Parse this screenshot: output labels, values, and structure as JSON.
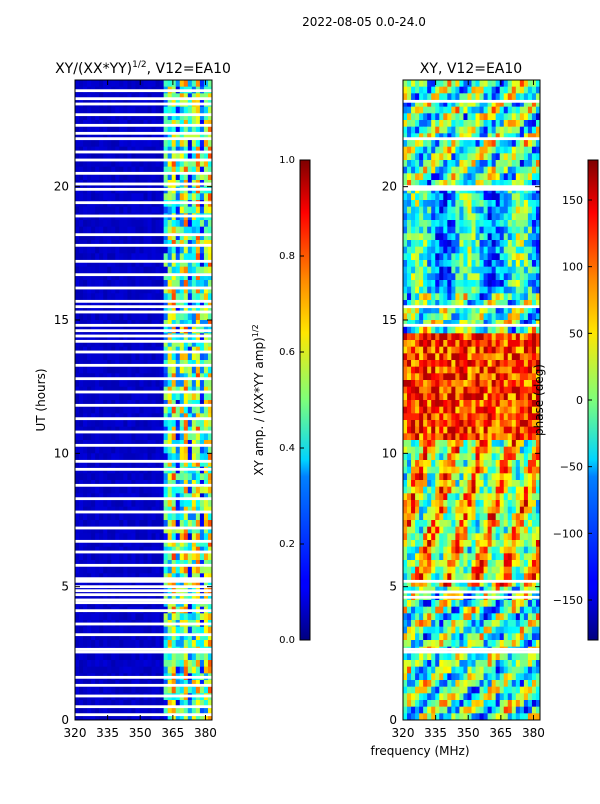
{
  "figure": {
    "suptitle": "2022-08-05 0.0-24.0",
    "shared_xlabel": "frequency (MHz)"
  },
  "chart_data": [
    {
      "type": "heatmap",
      "title": "XY/(XX*YY)",
      "title_exponent": "1/2",
      "title_suffix": ", V12=EA10",
      "ylabel": "UT (hours)",
      "xlim": [
        320,
        383
      ],
      "ylim": [
        0,
        24
      ],
      "xticks": [
        320,
        335,
        350,
        365,
        380
      ],
      "yticks": [
        0,
        5,
        10,
        15,
        20
      ],
      "colorbar": {
        "label": "XY amp. / (XX*YY amp)",
        "label_exponent": "1/2",
        "range": [
          0,
          1
        ],
        "ticks": [
          "0.0",
          "0.2",
          "0.4",
          "0.6",
          "0.8",
          "1.0"
        ],
        "colormap": "jet"
      },
      "description_values": {
        "low_band_level": 0.05,
        "high_band_start_mhz": 360
      },
      "flagged_times_ut": [
        0.2,
        0.5,
        0.9,
        1.3,
        1.6,
        2.55,
        2.65,
        3.2,
        3.6,
        4.1,
        4.4,
        4.5,
        4.7,
        4.85,
        5.0,
        5.2,
        5.3,
        5.8,
        6.3,
        6.7,
        7.2,
        7.8,
        8.3,
        8.8,
        9.4,
        9.7,
        10.3,
        10.8,
        11.3,
        11.8,
        12.3,
        12.8,
        13.3,
        13.8,
        14.2,
        14.4,
        14.6,
        14.8,
        15.3,
        15.5,
        15.7,
        16.2,
        16.7,
        17.2,
        17.8,
        18.2,
        18.9,
        19.4,
        19.9,
        20.1,
        20.5,
        21.0,
        21.3,
        21.8,
        22.0,
        22.3,
        22.7,
        23.1,
        23.3,
        23.6
      ]
    },
    {
      "type": "heatmap",
      "title": "XY, V12=EA10",
      "xlabel": "frequency (MHz)",
      "xlim": [
        320,
        383
      ],
      "ylim": [
        0,
        24
      ],
      "xticks": [
        320,
        335,
        350,
        365,
        380
      ],
      "yticks": [
        0,
        5,
        10,
        15,
        20
      ],
      "colorbar": {
        "label": "phase (deg)",
        "range": [
          -180,
          180
        ],
        "ticks": [
          "−150",
          "−100",
          "−50",
          "0",
          "50",
          "100",
          "150"
        ],
        "tick_values": [
          -150,
          -100,
          -50,
          0,
          50,
          100,
          150
        ],
        "colormap": "jet"
      },
      "flagged_times_ut": [
        2.55,
        2.65,
        4.6,
        4.8,
        5.2,
        14.8,
        15.5,
        19.9,
        20.0,
        21.8,
        23.2
      ]
    }
  ]
}
